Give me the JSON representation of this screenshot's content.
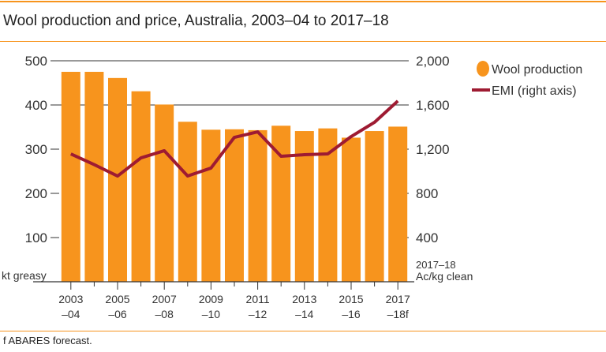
{
  "title": "Wool production and price, Australia, 2003–04 to 2017–18",
  "footnote": "f ABARES forecast.",
  "colors": {
    "bars": "#f7941d",
    "line": "#9e1b32",
    "rule": "#f7941d"
  },
  "chart_data": {
    "type": "bar",
    "categories_top": [
      "2003",
      "",
      "2005",
      "",
      "2007",
      "",
      "2009",
      "",
      "2011",
      "",
      "2013",
      "",
      "2015",
      "",
      "2017"
    ],
    "categories_bottom": [
      "–04",
      "",
      "–06",
      "",
      "–08",
      "",
      "–10",
      "",
      "–12",
      "",
      "–14",
      "",
      "–16",
      "",
      "–18f"
    ],
    "categories": [
      "2003–04",
      "2004–05",
      "2005–06",
      "2006–07",
      "2007–08",
      "2008–09",
      "2009–10",
      "2010–11",
      "2011–12",
      "2012–13",
      "2013–14",
      "2014–15",
      "2015–16",
      "2016–17",
      "2017–18f"
    ],
    "series": [
      {
        "name": "Wool production",
        "type": "bar",
        "axis": "left",
        "values": [
          475,
          475,
          461,
          431,
          401,
          362,
          344,
          345,
          343,
          353,
          341,
          347,
          326,
          341,
          351
        ]
      },
      {
        "name": "EMI (right axis)",
        "type": "line",
        "axis": "right",
        "values": [
          1157,
          1060,
          957,
          1121,
          1186,
          957,
          1029,
          1307,
          1357,
          1136,
          1150,
          1157,
          1314,
          1443,
          1636
        ]
      }
    ],
    "left_axis": {
      "label": "kt greasy",
      "ylim": [
        0,
        500
      ],
      "ticks": [
        "100",
        "200",
        "300",
        "400",
        "500"
      ]
    },
    "right_axis": {
      "label_line1": "2017–18",
      "label_line2": "Ac/kg clean",
      "ylim": [
        0,
        2000
      ],
      "ticks": [
        "400",
        "800",
        "1,200",
        "1,600",
        "2,000"
      ]
    },
    "legend_placement": "top-right"
  }
}
